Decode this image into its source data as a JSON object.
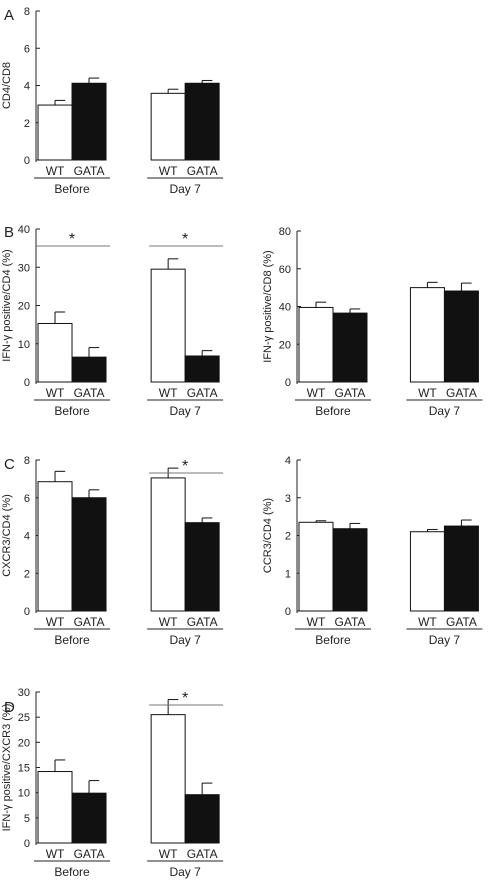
{
  "chart_data": [
    {
      "type": "bar",
      "panel_label": "A",
      "ylabel": "CD4/CD8",
      "ylim": [
        0,
        8
      ],
      "yticks": [
        0,
        2,
        4,
        6,
        8
      ],
      "groups": [
        "Before",
        "Day 7"
      ],
      "categories": [
        "WT",
        "GATA"
      ],
      "values": [
        [
          2.95,
          4.12
        ],
        [
          3.58,
          4.12
        ]
      ],
      "errors": [
        [
          0.25,
          0.28
        ],
        [
          0.22,
          0.15
        ]
      ],
      "significance": [],
      "colors": {
        "WT": "#ffffff",
        "GATA": "#111111"
      }
    },
    {
      "type": "bar",
      "panel_label": "B",
      "ylabel": "IFN-γ positive/CD4 (%)",
      "ylim": [
        0,
        40
      ],
      "yticks": [
        0,
        10,
        20,
        30,
        40
      ],
      "groups": [
        "Before",
        "Day 7"
      ],
      "categories": [
        "WT",
        "GATA"
      ],
      "values": [
        [
          15.3,
          6.5
        ],
        [
          29.5,
          6.8
        ]
      ],
      "errors": [
        [
          3.0,
          2.5
        ],
        [
          2.7,
          1.4
        ]
      ],
      "significance": [
        {
          "group": 0,
          "label": "*"
        },
        {
          "group": 1,
          "label": "*"
        }
      ],
      "colors": {
        "WT": "#ffffff",
        "GATA": "#111111"
      }
    },
    {
      "type": "bar",
      "panel_label": "",
      "ylabel": "IFN-γ positive/CD8 (%)",
      "ylim": [
        0,
        80
      ],
      "yticks": [
        0,
        20,
        40,
        60,
        80
      ],
      "groups": [
        "Before",
        "Day 7"
      ],
      "categories": [
        "WT",
        "GATA"
      ],
      "values": [
        [
          39.5,
          36.5
        ],
        [
          50.0,
          48.2
        ]
      ],
      "errors": [
        [
          2.8,
          2.2
        ],
        [
          2.8,
          4.2
        ]
      ],
      "significance": [],
      "colors": {
        "WT": "#ffffff",
        "GATA": "#111111"
      }
    },
    {
      "type": "bar",
      "panel_label": "C",
      "ylabel": "CXCR3/CD4 (%)",
      "ylim": [
        0,
        8
      ],
      "yticks": [
        0,
        2,
        4,
        6,
        8
      ],
      "groups": [
        "Before",
        "Day 7"
      ],
      "categories": [
        "WT",
        "GATA"
      ],
      "values": [
        [
          6.85,
          6.0
        ],
        [
          7.05,
          4.68
        ]
      ],
      "errors": [
        [
          0.55,
          0.42
        ],
        [
          0.52,
          0.25
        ]
      ],
      "significance": [
        {
          "group": 1,
          "label": "*"
        }
      ],
      "colors": {
        "WT": "#ffffff",
        "GATA": "#111111"
      }
    },
    {
      "type": "bar",
      "panel_label": "",
      "ylabel": "CCR3/CD4 (%)",
      "ylim": [
        0,
        4
      ],
      "yticks": [
        0,
        1,
        2,
        3,
        4
      ],
      "groups": [
        "Before",
        "Day 7"
      ],
      "categories": [
        "WT",
        "GATA"
      ],
      "values": [
        [
          2.35,
          2.18
        ],
        [
          2.1,
          2.25
        ]
      ],
      "errors": [
        [
          0.04,
          0.14
        ],
        [
          0.06,
          0.16
        ]
      ],
      "significance": [],
      "colors": {
        "WT": "#ffffff",
        "GATA": "#111111"
      }
    },
    {
      "type": "bar",
      "panel_label": "D",
      "ylabel": "IFN-γ positive/CXCR3 (%)",
      "ylim": [
        0,
        30
      ],
      "yticks": [
        0,
        5,
        10,
        15,
        20,
        25,
        30
      ],
      "groups": [
        "Before",
        "Day 7"
      ],
      "categories": [
        "WT",
        "GATA"
      ],
      "values": [
        [
          14.2,
          9.9
        ],
        [
          25.5,
          9.6
        ]
      ],
      "errors": [
        [
          2.3,
          2.5
        ],
        [
          3.0,
          2.3
        ]
      ],
      "significance": [
        {
          "group": 1,
          "label": "*"
        }
      ],
      "colors": {
        "WT": "#ffffff",
        "GATA": "#111111"
      }
    }
  ]
}
